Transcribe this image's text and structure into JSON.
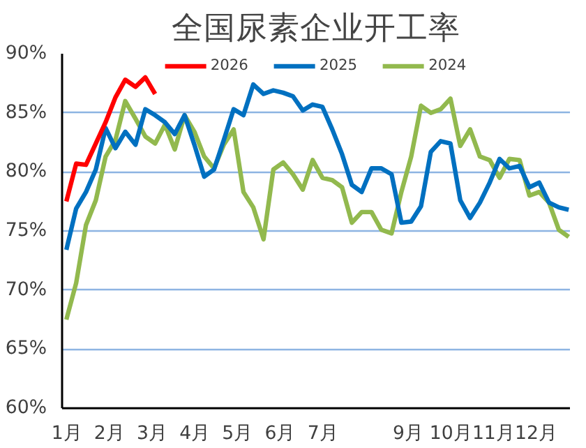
{
  "chart_data": {
    "type": "line",
    "title": "全国尿素企业开工率",
    "x": [
      1.0,
      1.23,
      1.46,
      1.69,
      1.92,
      2.15,
      2.38,
      2.62,
      2.85,
      3.08,
      3.31,
      3.54,
      3.77,
      4.0,
      4.23,
      4.46,
      4.69,
      4.92,
      5.15,
      5.38,
      5.62,
      5.85,
      6.08,
      6.31,
      6.54,
      6.77,
      7.0,
      7.23,
      7.46,
      7.69,
      7.92,
      8.15,
      8.38,
      8.62,
      8.85,
      9.08,
      9.31,
      9.54,
      9.77,
      10.0,
      10.23,
      10.46,
      10.69,
      10.92,
      11.15,
      11.38,
      11.62,
      11.85,
      12.08,
      12.31,
      12.54,
      12.77
    ],
    "series": [
      {
        "name": "2026",
        "color": "#ff0000",
        "x": [
          1.0,
          1.23,
          1.46,
          1.69,
          1.92,
          2.15,
          2.38,
          2.62,
          2.85,
          3.08
        ],
        "values": [
          77.5,
          80.7,
          80.6,
          82.4,
          84.2,
          86.3,
          87.8,
          87.2,
          88.0,
          86.6
        ]
      },
      {
        "name": "2025",
        "color": "#0070c0",
        "values": [
          73.4,
          76.9,
          78.3,
          80.2,
          83.7,
          82.0,
          83.4,
          82.3,
          85.3,
          84.8,
          84.2,
          83.2,
          84.8,
          82.3,
          79.6,
          80.2,
          82.7,
          85.3,
          84.8,
          87.4,
          86.6,
          86.9,
          86.7,
          86.4,
          85.2,
          85.7,
          85.5,
          83.6,
          81.5,
          78.9,
          78.3,
          80.3,
          80.3,
          79.8,
          75.7,
          75.8,
          77.1,
          81.7,
          82.6,
          82.4,
          77.6,
          76.1,
          77.4,
          79.1,
          81.1,
          80.3,
          80.5,
          78.7,
          79.1,
          77.4,
          77.0,
          76.8
        ]
      },
      {
        "name": "2024",
        "color": "#92b94e",
        "values": [
          67.5,
          70.6,
          75.5,
          77.6,
          81.3,
          82.7,
          86.0,
          84.5,
          83.0,
          82.4,
          84.0,
          81.9,
          84.8,
          83.4,
          81.3,
          80.3,
          82.3,
          83.6,
          78.3,
          77.0,
          74.3,
          80.2,
          80.8,
          79.8,
          78.5,
          81.0,
          79.5,
          79.3,
          78.7,
          75.7,
          76.6,
          76.6,
          75.1,
          74.8,
          78.3,
          81.3,
          85.6,
          85.0,
          85.3,
          86.2,
          82.2,
          83.6,
          81.3,
          81.0,
          79.5,
          81.1,
          81.0,
          78.0,
          78.3,
          77.4,
          75.1,
          74.5
        ]
      }
    ],
    "xlim": [
      0.9,
      12.8
    ],
    "xticks": [
      {
        "value": 1,
        "label": "1月"
      },
      {
        "value": 2,
        "label": "2月"
      },
      {
        "value": 3,
        "label": "3月"
      },
      {
        "value": 4,
        "label": "4月"
      },
      {
        "value": 5,
        "label": "5月"
      },
      {
        "value": 6,
        "label": "6月"
      },
      {
        "value": 7,
        "label": "7月"
      },
      {
        "value": 9,
        "label": "9月"
      },
      {
        "value": 10,
        "label": "10月"
      },
      {
        "value": 11,
        "label": "11月"
      },
      {
        "value": 12,
        "label": "12月"
      }
    ],
    "ylim": [
      60,
      90
    ],
    "yticks": [
      {
        "value": 60,
        "label": "60%"
      },
      {
        "value": 65,
        "label": "65%"
      },
      {
        "value": 70,
        "label": "70%"
      },
      {
        "value": 75,
        "label": "75%"
      },
      {
        "value": 80,
        "label": "80%"
      },
      {
        "value": 85,
        "label": "85%"
      },
      {
        "value": 90,
        "label": "90%"
      }
    ],
    "grid": "y",
    "legend": "top",
    "marker": "none",
    "line_style": "solid"
  }
}
